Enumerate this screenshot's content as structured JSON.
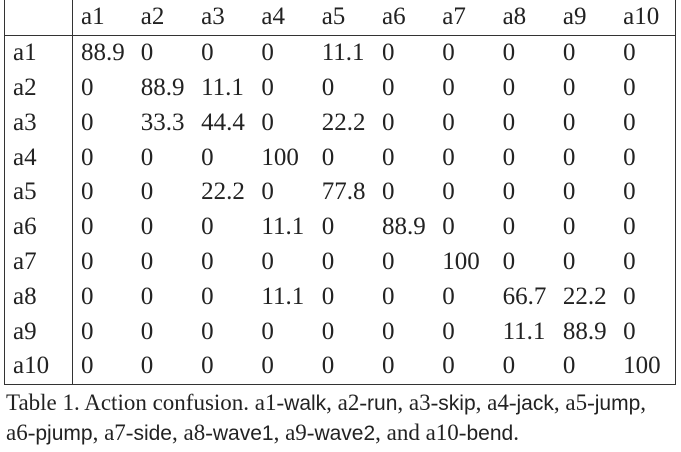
{
  "table": {
    "header": [
      "a1",
      "a2",
      "a3",
      "a4",
      "a5",
      "a6",
      "a7",
      "a8",
      "a9",
      "a10"
    ],
    "rows": [
      [
        "a1",
        88.9,
        0,
        0,
        0,
        11.1,
        0,
        0,
        0,
        0,
        0
      ],
      [
        "a2",
        0,
        88.9,
        11.1,
        0,
        0,
        0,
        0,
        0,
        0,
        0
      ],
      [
        "a3",
        0,
        33.3,
        44.4,
        0,
        22.2,
        0,
        0,
        0,
        0,
        0
      ],
      [
        "a4",
        0,
        0,
        0,
        100,
        0,
        0,
        0,
        0,
        0,
        0
      ],
      [
        "a5",
        0,
        0,
        22.2,
        0,
        77.8,
        0,
        0,
        0,
        0,
        0
      ],
      [
        "a6",
        0,
        0,
        0,
        11.1,
        0,
        88.9,
        0,
        0,
        0,
        0
      ],
      [
        "a7",
        0,
        0,
        0,
        0,
        0,
        0,
        100,
        0,
        0,
        0
      ],
      [
        "a8",
        0,
        0,
        0,
        11.1,
        0,
        0,
        0,
        66.7,
        22.2,
        0
      ],
      [
        "a9",
        0,
        0,
        0,
        0,
        0,
        0,
        0,
        11.1,
        88.9,
        0
      ],
      [
        "a10",
        0,
        0,
        0,
        0,
        0,
        0,
        0,
        0,
        0,
        100
      ]
    ]
  },
  "caption": {
    "parts": [
      {
        "text": "Table 1. Action confusion. a1-",
        "sans": false
      },
      {
        "text": "walk",
        "sans": true
      },
      {
        "text": ", a2-",
        "sans": false
      },
      {
        "text": "run",
        "sans": true
      },
      {
        "text": ", a3-",
        "sans": false
      },
      {
        "text": "skip",
        "sans": true
      },
      {
        "text": ", a4-",
        "sans": false
      },
      {
        "text": "jack",
        "sans": true
      },
      {
        "text": ", a5-",
        "sans": false
      },
      {
        "text": "jump",
        "sans": true
      },
      {
        "text": ", a6-",
        "sans": false
      },
      {
        "text": "pjump",
        "sans": true
      },
      {
        "text": ", a7-",
        "sans": false
      },
      {
        "text": "side",
        "sans": true
      },
      {
        "text": ", a8-",
        "sans": false
      },
      {
        "text": "wave1",
        "sans": true
      },
      {
        "text": ", a9-",
        "sans": false
      },
      {
        "text": "wave2",
        "sans": true
      },
      {
        "text": ", and a10-",
        "sans": false
      },
      {
        "text": "bend",
        "sans": true
      },
      {
        "text": ".",
        "sans": false
      }
    ]
  }
}
